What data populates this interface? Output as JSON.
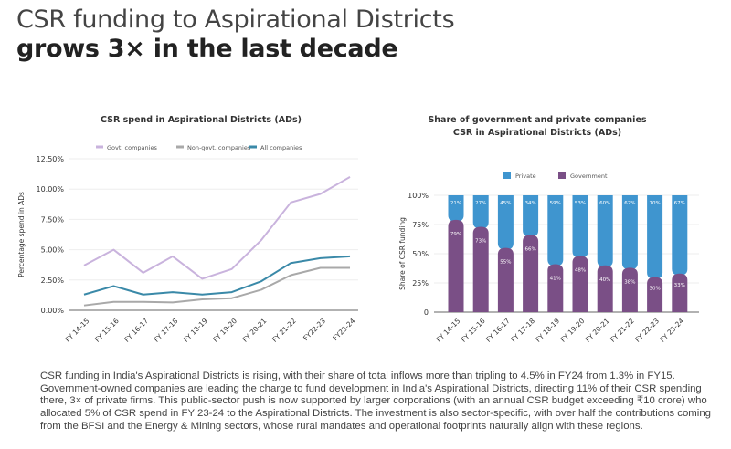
{
  "header": {
    "title_line1": "CSR funding to Aspirational Districts",
    "title_line2": "grows 3× in the last decade"
  },
  "chart_data": [
    {
      "type": "line",
      "title": "CSR spend in Aspirational Districts (ADs)",
      "ylabel": "Percentage spend in ADs",
      "xlabel": "",
      "ylim": [
        0,
        12.5
      ],
      "yticks": [
        "0.00%",
        "2.50%",
        "5.00%",
        "7.50%",
        "10.00%",
        "12.50%"
      ],
      "grid": true,
      "legend": "top",
      "categories": [
        "FY 14-15",
        "FY 15-16",
        "FY 16-17",
        "FY 17-18",
        "FY 18-19",
        "FY 19-20",
        "FY 20-21",
        "FY 21-22",
        "FY22-23",
        "FY23-24"
      ],
      "series": [
        {
          "name": "Govt. companies",
          "color": "#c9b3dd",
          "values": [
            3.7,
            5.0,
            3.1,
            4.45,
            2.6,
            3.4,
            5.8,
            8.9,
            9.6,
            11.0
          ]
        },
        {
          "name": "Non-govt. companies",
          "color": "#a9a9a9",
          "values": [
            0.4,
            0.7,
            0.7,
            0.65,
            0.9,
            1.0,
            1.7,
            2.9,
            3.5,
            3.5
          ]
        },
        {
          "name": "All companies",
          "color": "#3a89a8",
          "values": [
            1.3,
            2.0,
            1.3,
            1.5,
            1.3,
            1.5,
            2.4,
            3.9,
            4.3,
            4.45
          ]
        }
      ]
    },
    {
      "type": "bar",
      "stacked": true,
      "title": "Share of government and private companies",
      "title_line2": "CSR in Aspirational Districts (ADs)",
      "ylabel": "Share of CSR funding",
      "ylim": [
        0,
        100
      ],
      "yticks": [
        "0",
        "25%",
        "50%",
        "75%",
        "100%"
      ],
      "legend": "top",
      "categories": [
        "FY 14-15",
        "FY 15-16",
        "FY 16-17",
        "FY 17-18",
        "FY 18-19",
        "FY 19-20",
        "FY 20-21",
        "FY 21-22",
        "FY 22-23",
        "FY 23-24"
      ],
      "series": [
        {
          "name": "Private",
          "color": "#3f95cf",
          "values": [
            21,
            27,
            45,
            34,
            59,
            53,
            60,
            62,
            70,
            67
          ],
          "labels": [
            "21%",
            "27%",
            "45%",
            "34%",
            "59%",
            "53%",
            "60%",
            "62%",
            "70%",
            "67%"
          ]
        },
        {
          "name": "Government",
          "color": "#7a4f86",
          "values": [
            79,
            73,
            55,
            66,
            41,
            48,
            40,
            38,
            30,
            33
          ],
          "labels": [
            "79%",
            "73%",
            "55%",
            "66%",
            "41%",
            "48%",
            "40%",
            "38%",
            "30%",
            "33%"
          ]
        }
      ]
    }
  ],
  "body_text": "CSR funding in India's Aspirational Districts is rising, with their share of total inflows more than tripling to 4.5% in FY24 from 1.3% in FY15. Government-owned companies are leading the charge to fund development in India's Aspirational Districts, directing 11% of their CSR spending there, 3× of private firms. This public-sector push is now supported by larger corporations (with an annual CSR budget exceeding ₹10 crore) who allocated 5% of CSR spend in  FY 23-24 to the Aspirational Districts. The investment is also sector-specific, with over half the contributions coming from the BFSI and the Energy & Mining sectors, whose rural mandates and operational footprints naturally align with these regions."
}
